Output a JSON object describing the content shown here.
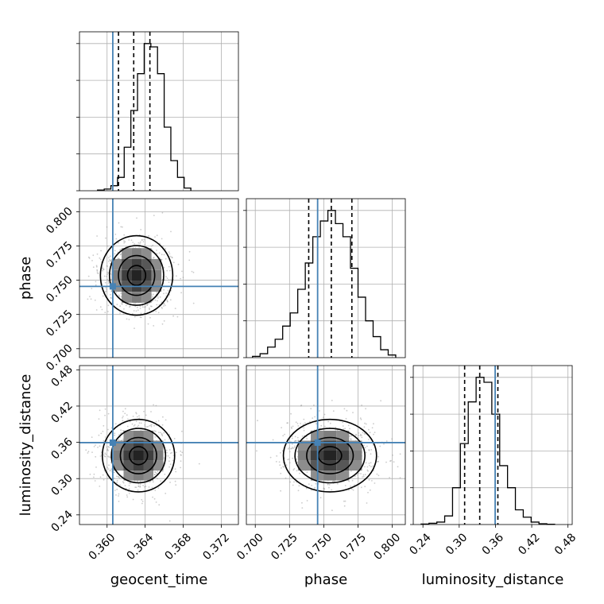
{
  "chart_data": {
    "type": "corner",
    "parameters": [
      "geocent_time",
      "phase",
      "luminosity_distance"
    ],
    "axis_labels": {
      "geocent_time": "geocent_time",
      "phase": "phase",
      "luminosity_distance": "luminosity_distance"
    },
    "ranges": {
      "geocent_time": [
        0.3571,
        0.3738
      ],
      "phase": [
        0.6935,
        0.8095
      ],
      "luminosity_distance": [
        0.224,
        0.487
      ]
    },
    "ticks": {
      "geocent_time": [
        0.36,
        0.364,
        0.368,
        0.372
      ],
      "phase": [
        0.7,
        0.725,
        0.75,
        0.775,
        0.8
      ],
      "luminosity_distance": [
        0.24,
        0.3,
        0.36,
        0.42,
        0.48
      ]
    },
    "tick_labels": {
      "geocent_time": [
        "0.360",
        "0.364",
        "0.368",
        "0.372"
      ],
      "phase": [
        "0.700",
        "0.725",
        "0.750",
        "0.775",
        "0.800"
      ],
      "luminosity_distance": [
        "0.24",
        "0.30",
        "0.36",
        "0.42",
        "0.48"
      ]
    },
    "truths": {
      "geocent_time": 0.3606,
      "phase": 0.7455,
      "luminosity_distance": 0.3595
    },
    "quantiles": {
      "geocent_time": [
        0.3612,
        0.3628,
        0.3645
      ],
      "phase": [
        0.739,
        0.7555,
        0.7705
      ],
      "luminosity_distance": [
        0.309,
        0.334,
        0.364
      ]
    },
    "histograms": {
      "geocent_time": {
        "bin_edges": [
          0.359,
          0.3597,
          0.3604,
          0.3611,
          0.3618,
          0.3625,
          0.3632,
          0.3639,
          0.3646,
          0.3653,
          0.366,
          0.3667,
          0.3674,
          0.3681,
          0.3688
        ],
        "heights": [
          2,
          5,
          15,
          40,
          130,
          240,
          350,
          440,
          430,
          350,
          190,
          90,
          40,
          8
        ]
      },
      "phase": {
        "bin_edges": [
          0.698,
          0.7035,
          0.709,
          0.7145,
          0.72,
          0.7255,
          0.731,
          0.7365,
          0.742,
          0.7475,
          0.753,
          0.7585,
          0.764,
          0.7695,
          0.775,
          0.7805,
          0.786,
          0.7915,
          0.797,
          0.8025
        ],
        "heights": [
          5,
          15,
          40,
          70,
          120,
          170,
          260,
          360,
          460,
          520,
          560,
          510,
          460,
          340,
          230,
          140,
          80,
          30,
          10
        ]
      },
      "luminosity_distance": {
        "bin_edges": [
          0.237,
          0.25,
          0.263,
          0.276,
          0.289,
          0.302,
          0.315,
          0.328,
          0.341,
          0.354,
          0.367,
          0.38,
          0.393,
          0.406,
          0.419,
          0.432,
          0.445,
          0.458
        ],
        "heights": [
          2,
          5,
          10,
          35,
          150,
          330,
          500,
          600,
          580,
          450,
          240,
          150,
          60,
          30,
          10,
          3,
          1
        ]
      }
    },
    "pairs": [
      {
        "x": "geocent_time",
        "y": "phase",
        "center": [
          0.3631,
          0.7535
        ],
        "sigma": [
          0.0019,
          0.0145
        ],
        "contour_levels": [
          0.5,
          1.0,
          1.5,
          2.0
        ]
      },
      {
        "x": "geocent_time",
        "y": "luminosity_distance",
        "center": [
          0.3633,
          0.338
        ],
        "sigma": [
          0.0019,
          0.03
        ],
        "contour_levels": [
          0.5,
          1.0,
          1.5,
          2.0
        ]
      },
      {
        "x": "phase",
        "y": "luminosity_distance",
        "center": [
          0.7545,
          0.338
        ],
        "sigma": [
          0.017,
          0.03
        ],
        "contour_levels": [
          0.5,
          1.0,
          1.5,
          2.0
        ]
      }
    ],
    "grid": true,
    "colors": {
      "truth": "#4682b4",
      "histogram": "#000000",
      "contour": "#000000",
      "scatter": "#9a9a9a",
      "grid": "#b0b0b0"
    }
  }
}
